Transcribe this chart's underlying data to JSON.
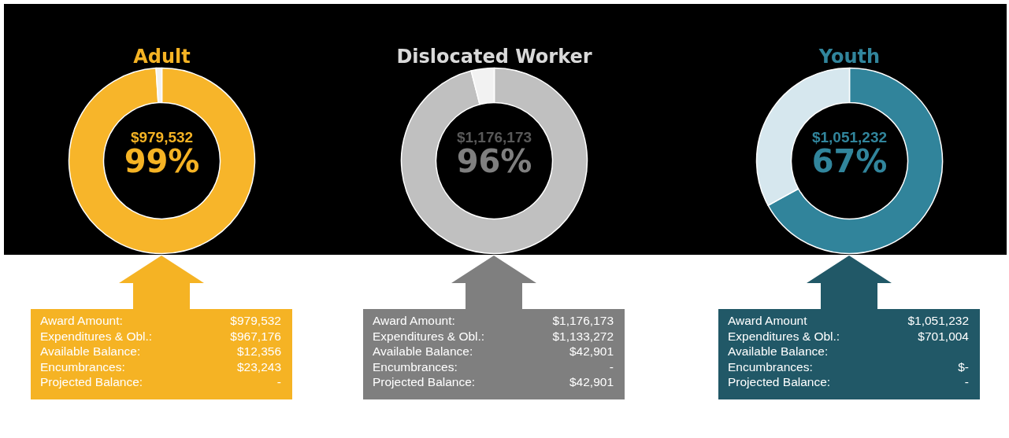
{
  "chart_data": [
    {
      "type": "donut",
      "title": "Adult",
      "categories": [
        null,
        null
      ],
      "values": [
        99,
        1
      ],
      "colors": [
        "#f7b52a",
        "#f2f2f2"
      ],
      "annotations": [
        "$979,532",
        "99%",
        "Award Amount:",
        "$979,532",
        "Expenditures & Obl.:",
        "$967,176",
        "Available Balance:",
        "$12,356",
        "Encumbrances:",
        "$23,243",
        "Projected Balance:",
        "-"
      ]
    },
    {
      "type": "donut",
      "title": "Dislocated Worker",
      "categories": [
        null,
        null
      ],
      "values": [
        96,
        4
      ],
      "colors": [
        "#c0c0c0",
        "#f2f2f2"
      ],
      "annotations": [
        "$1,176,173",
        "96%",
        "Award Amount:",
        "$1,176,173",
        "Expenditures & Obl.:",
        "$1,133,272",
        "Available Balance:",
        "$42,901",
        "Encumbrances:",
        "-",
        "Projected Balance:",
        "$42,901"
      ]
    },
    {
      "type": "donut",
      "title": "Youth",
      "categories": [
        null,
        null
      ],
      "values": [
        67,
        33
      ],
      "colors": [
        "#31849b",
        "#d6e7ee"
      ],
      "annotations": [
        "$1,051,232",
        "67%",
        "Award Amount",
        "$1,051,232",
        "Expenditures & Obl.:",
        "$701,004",
        "Available Balance:",
        null,
        "Encumbrances:",
        "$-",
        "Projected Balance:",
        "-"
      ]
    }
  ]
}
